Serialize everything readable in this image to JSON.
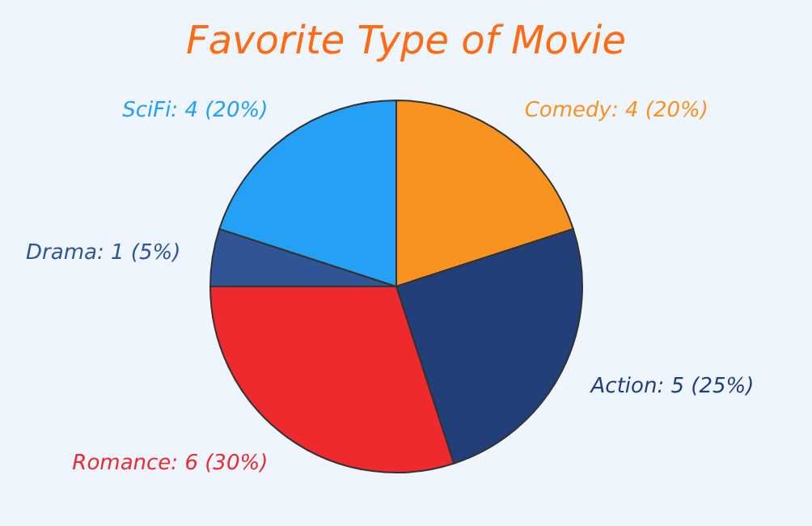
{
  "chart_data": {
    "type": "pie",
    "title": "Favorite Type of Movie",
    "categories": [
      "Comedy",
      "Action",
      "Romance",
      "Drama",
      "SciFi"
    ],
    "values": [
      4,
      5,
      6,
      1,
      4
    ],
    "colors": [
      "#f7931e",
      "#233f7a",
      "#ee2a2e",
      "#2f5597",
      "#24a0f5"
    ],
    "value_labels": [
      "4 (20%)",
      "5 (25%)",
      "6 (30%)",
      "1 (5%)",
      "4 (20%)"
    ],
    "legend": false
  }
}
